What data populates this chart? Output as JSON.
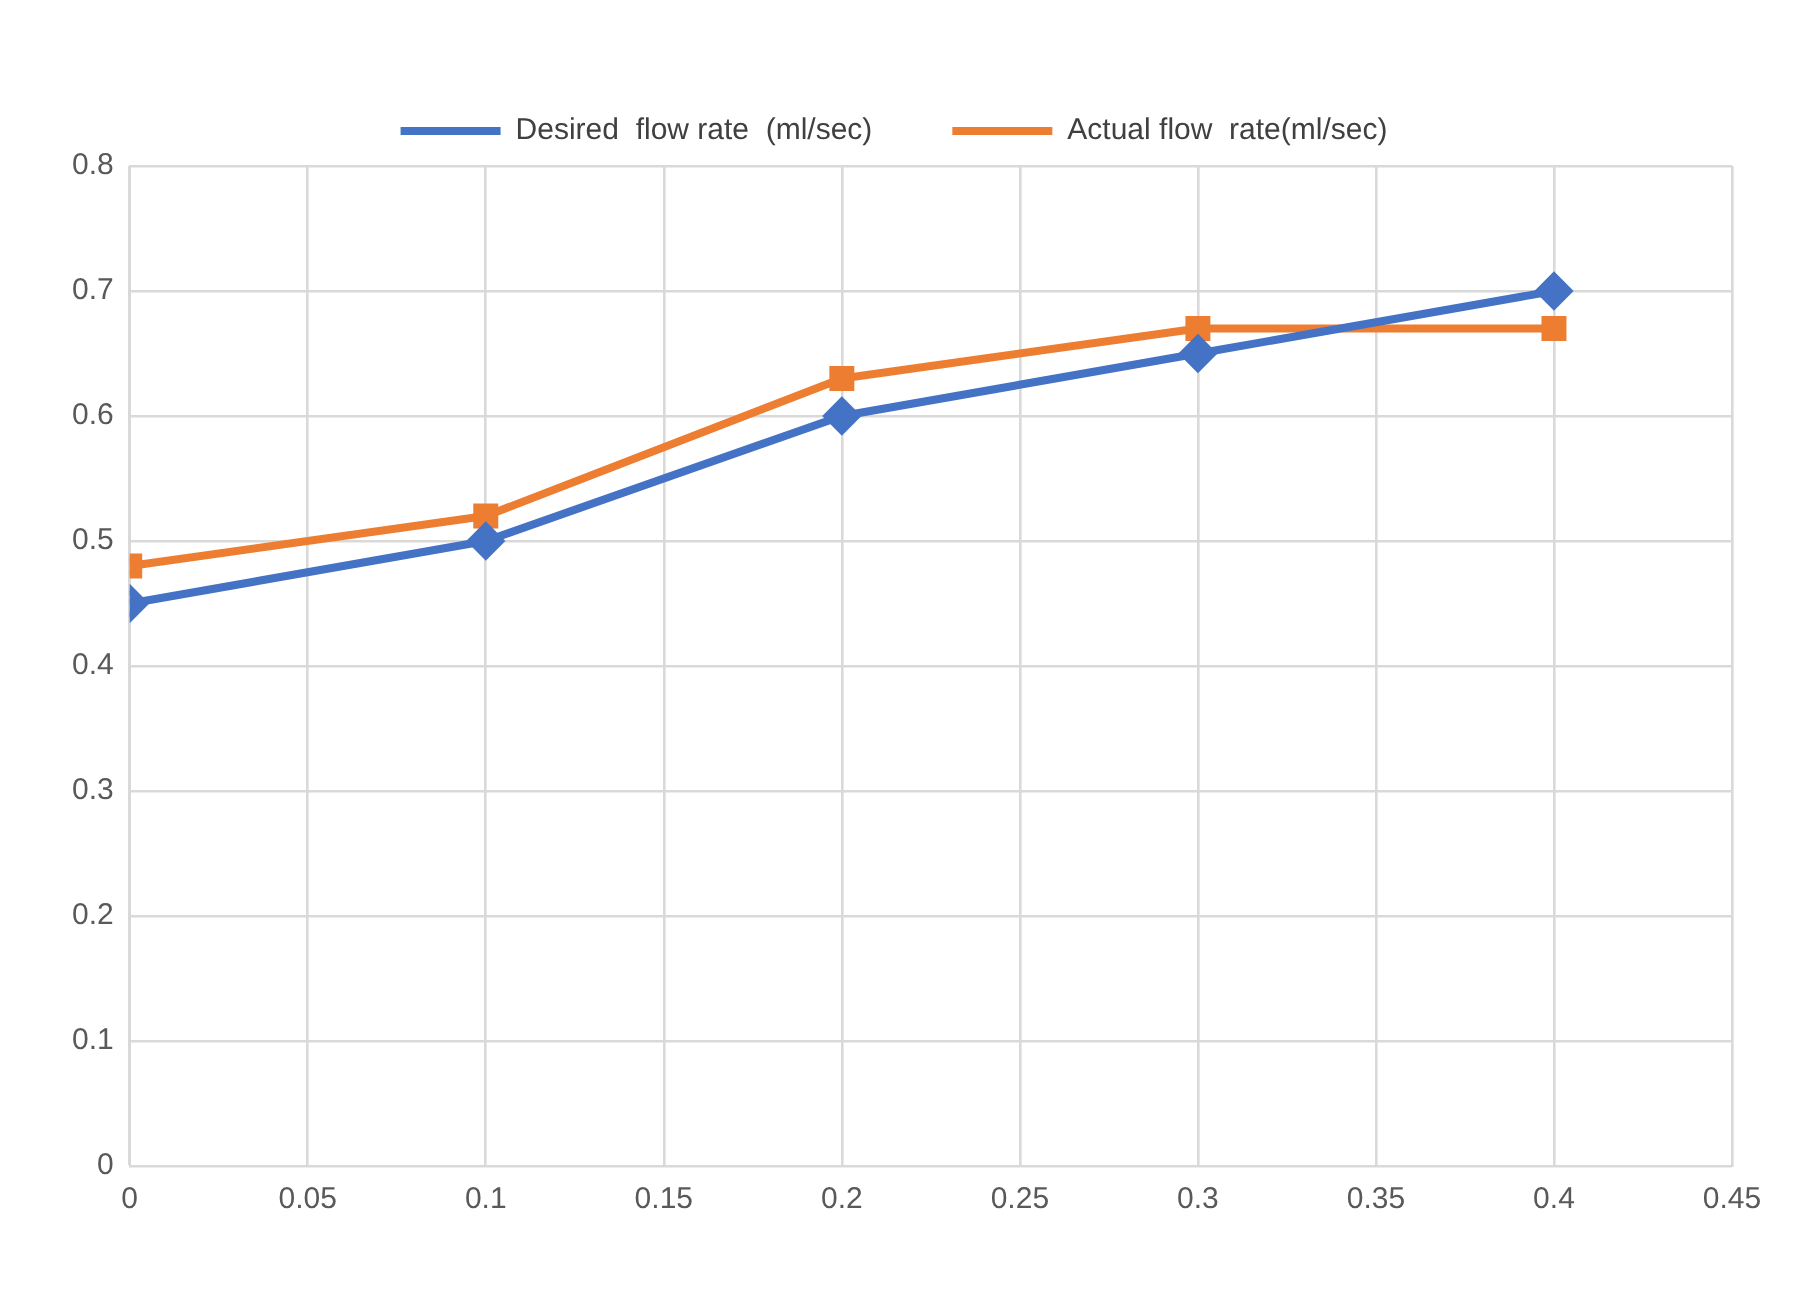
{
  "chart_data": {
    "type": "line",
    "xlim": [
      0,
      0.45
    ],
    "xticks": [
      0,
      0.05,
      0.1,
      0.15,
      0.2,
      0.25,
      0.3,
      0.35,
      0.4,
      0.45
    ],
    "ylim": [
      0,
      0.8
    ],
    "yticks": [
      0,
      0.1,
      0.2,
      0.3,
      0.4,
      0.5,
      0.6,
      0.7,
      0.8
    ],
    "grid": true,
    "legend": "top",
    "line_style": "solid",
    "x": [
      0,
      0.1,
      0.2,
      0.3,
      0.4
    ],
    "series": [
      {
        "name": "Desired  flow rate  (ml/sec)",
        "color": "#4472c4",
        "marker": "diamond",
        "values": [
          0.45,
          0.5,
          0.6,
          0.65,
          0.7
        ]
      },
      {
        "name": "Actual flow  rate(ml/sec)",
        "color": "#ed7d31",
        "marker": "square",
        "values": [
          0.48,
          0.52,
          0.63,
          0.67,
          0.67
        ]
      }
    ]
  }
}
